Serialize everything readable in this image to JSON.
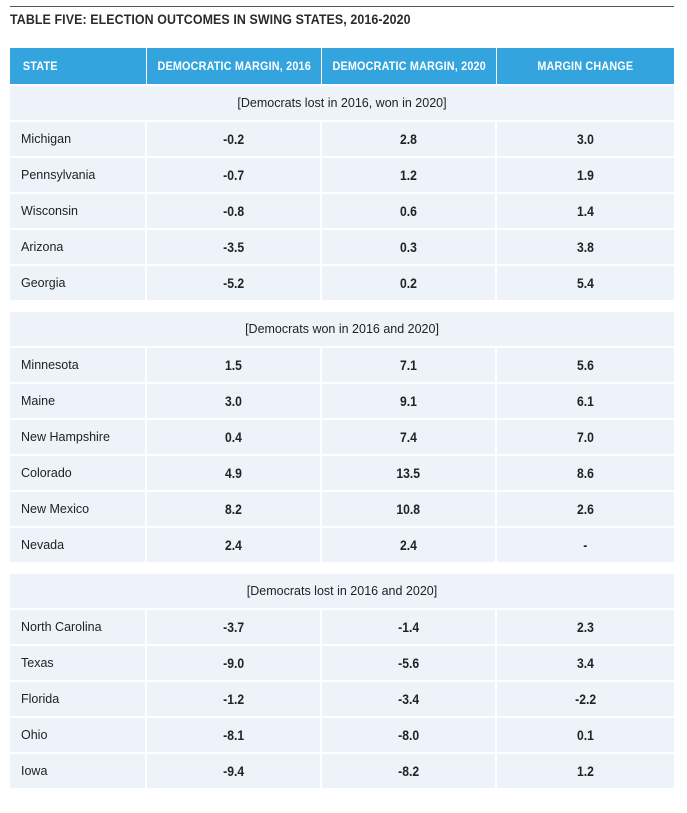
{
  "title": "TABLE FIVE: ELECTION OUTCOMES IN SWING STATES, 2016-2020",
  "columns": [
    "STATE",
    "DEMOCRATIC MARGIN, 2016",
    "DEMOCRATIC MARGIN, 2020",
    "MARGIN CHANGE"
  ],
  "colors": {
    "header_bg": "#33a4dd",
    "row_bg": "#edf3f9",
    "text": "#222222"
  },
  "sections": [
    {
      "label": "[Democrats lost in 2016, won in 2020]",
      "rows": [
        {
          "state": "Michigan",
          "m2016": "-0.2",
          "m2020": "2.8",
          "change": "3.0"
        },
        {
          "state": "Pennsylvania",
          "m2016": "-0.7",
          "m2020": "1.2",
          "change": "1.9"
        },
        {
          "state": "Wisconsin",
          "m2016": "-0.8",
          "m2020": "0.6",
          "change": "1.4"
        },
        {
          "state": "Arizona",
          "m2016": "-3.5",
          "m2020": "0.3",
          "change": "3.8"
        },
        {
          "state": "Georgia",
          "m2016": "-5.2",
          "m2020": "0.2",
          "change": "5.4"
        }
      ]
    },
    {
      "label": "[Democrats won in 2016 and 2020]",
      "rows": [
        {
          "state": "Minnesota",
          "m2016": "1.5",
          "m2020": "7.1",
          "change": "5.6"
        },
        {
          "state": "Maine",
          "m2016": "3.0",
          "m2020": "9.1",
          "change": "6.1"
        },
        {
          "state": "New Hampshire",
          "m2016": "0.4",
          "m2020": "7.4",
          "change": "7.0"
        },
        {
          "state": "Colorado",
          "m2016": "4.9",
          "m2020": "13.5",
          "change": "8.6"
        },
        {
          "state": "New Mexico",
          "m2016": "8.2",
          "m2020": "10.8",
          "change": "2.6"
        },
        {
          "state": "Nevada",
          "m2016": "2.4",
          "m2020": "2.4",
          "change": "-"
        }
      ]
    },
    {
      "label": "[Democrats lost in 2016 and 2020]",
      "rows": [
        {
          "state": "North Carolina",
          "m2016": "-3.7",
          "m2020": "-1.4",
          "change": "2.3"
        },
        {
          "state": "Texas",
          "m2016": "-9.0",
          "m2020": "-5.6",
          "change": "3.4"
        },
        {
          "state": "Florida",
          "m2016": "-1.2",
          "m2020": "-3.4",
          "change": "-2.2"
        },
        {
          "state": "Ohio",
          "m2016": "-8.1",
          "m2020": "-8.0",
          "change": "0.1"
        },
        {
          "state": "Iowa",
          "m2016": "-9.4",
          "m2020": "-8.2",
          "change": "1.2"
        }
      ]
    }
  ]
}
